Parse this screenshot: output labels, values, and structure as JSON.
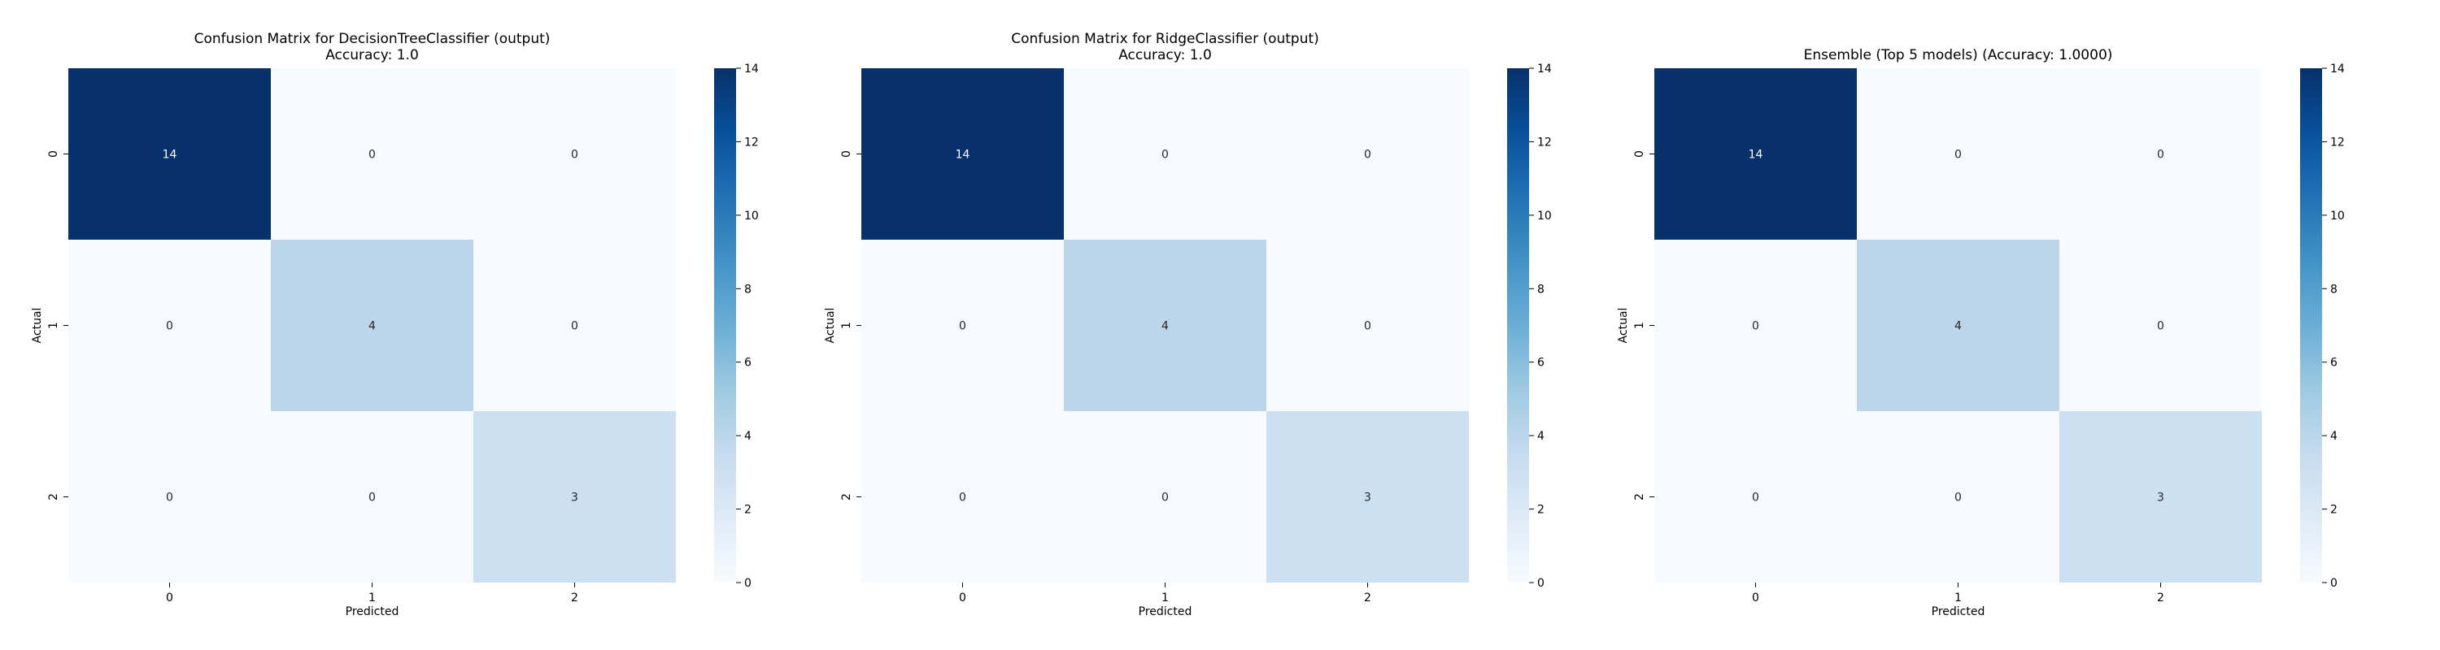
{
  "chart_data": [
    {
      "type": "heatmap",
      "title_lines": [
        "Confusion Matrix for DecisionTreeClassifier (output)",
        "Accuracy: 1.0"
      ],
      "xlabel": "Predicted",
      "ylabel": "Actual",
      "x_categories": [
        "0",
        "1",
        "2"
      ],
      "y_categories": [
        "0",
        "1",
        "2"
      ],
      "matrix": [
        [
          14,
          0,
          0
        ],
        [
          0,
          4,
          0
        ],
        [
          0,
          0,
          3
        ]
      ],
      "colorbar": {
        "min": 0,
        "max": 14,
        "ticks": [
          "0",
          "2",
          "4",
          "6",
          "8",
          "10",
          "12",
          "14"
        ]
      },
      "colormap": "Blues"
    },
    {
      "type": "heatmap",
      "title_lines": [
        "Confusion Matrix for RidgeClassifier (output)",
        "Accuracy: 1.0"
      ],
      "xlabel": "Predicted",
      "ylabel": "Actual",
      "x_categories": [
        "0",
        "1",
        "2"
      ],
      "y_categories": [
        "0",
        "1",
        "2"
      ],
      "matrix": [
        [
          14,
          0,
          0
        ],
        [
          0,
          4,
          0
        ],
        [
          0,
          0,
          3
        ]
      ],
      "colorbar": {
        "min": 0,
        "max": 14,
        "ticks": [
          "0",
          "2",
          "4",
          "6",
          "8",
          "10",
          "12",
          "14"
        ]
      },
      "colormap": "Blues"
    },
    {
      "type": "heatmap",
      "title_lines": [
        "Ensemble (Top 5 models) (Accuracy: 1.0000)"
      ],
      "xlabel": "Predicted",
      "ylabel": "Actual",
      "x_categories": [
        "0",
        "1",
        "2"
      ],
      "y_categories": [
        "0",
        "1",
        "2"
      ],
      "matrix": [
        [
          14,
          0,
          0
        ],
        [
          0,
          4,
          0
        ],
        [
          0,
          0,
          3
        ]
      ],
      "colorbar": {
        "min": 0,
        "max": 14,
        "ticks": [
          "0",
          "2",
          "4",
          "6",
          "8",
          "10",
          "12",
          "14"
        ]
      },
      "colormap": "Blues"
    }
  ]
}
